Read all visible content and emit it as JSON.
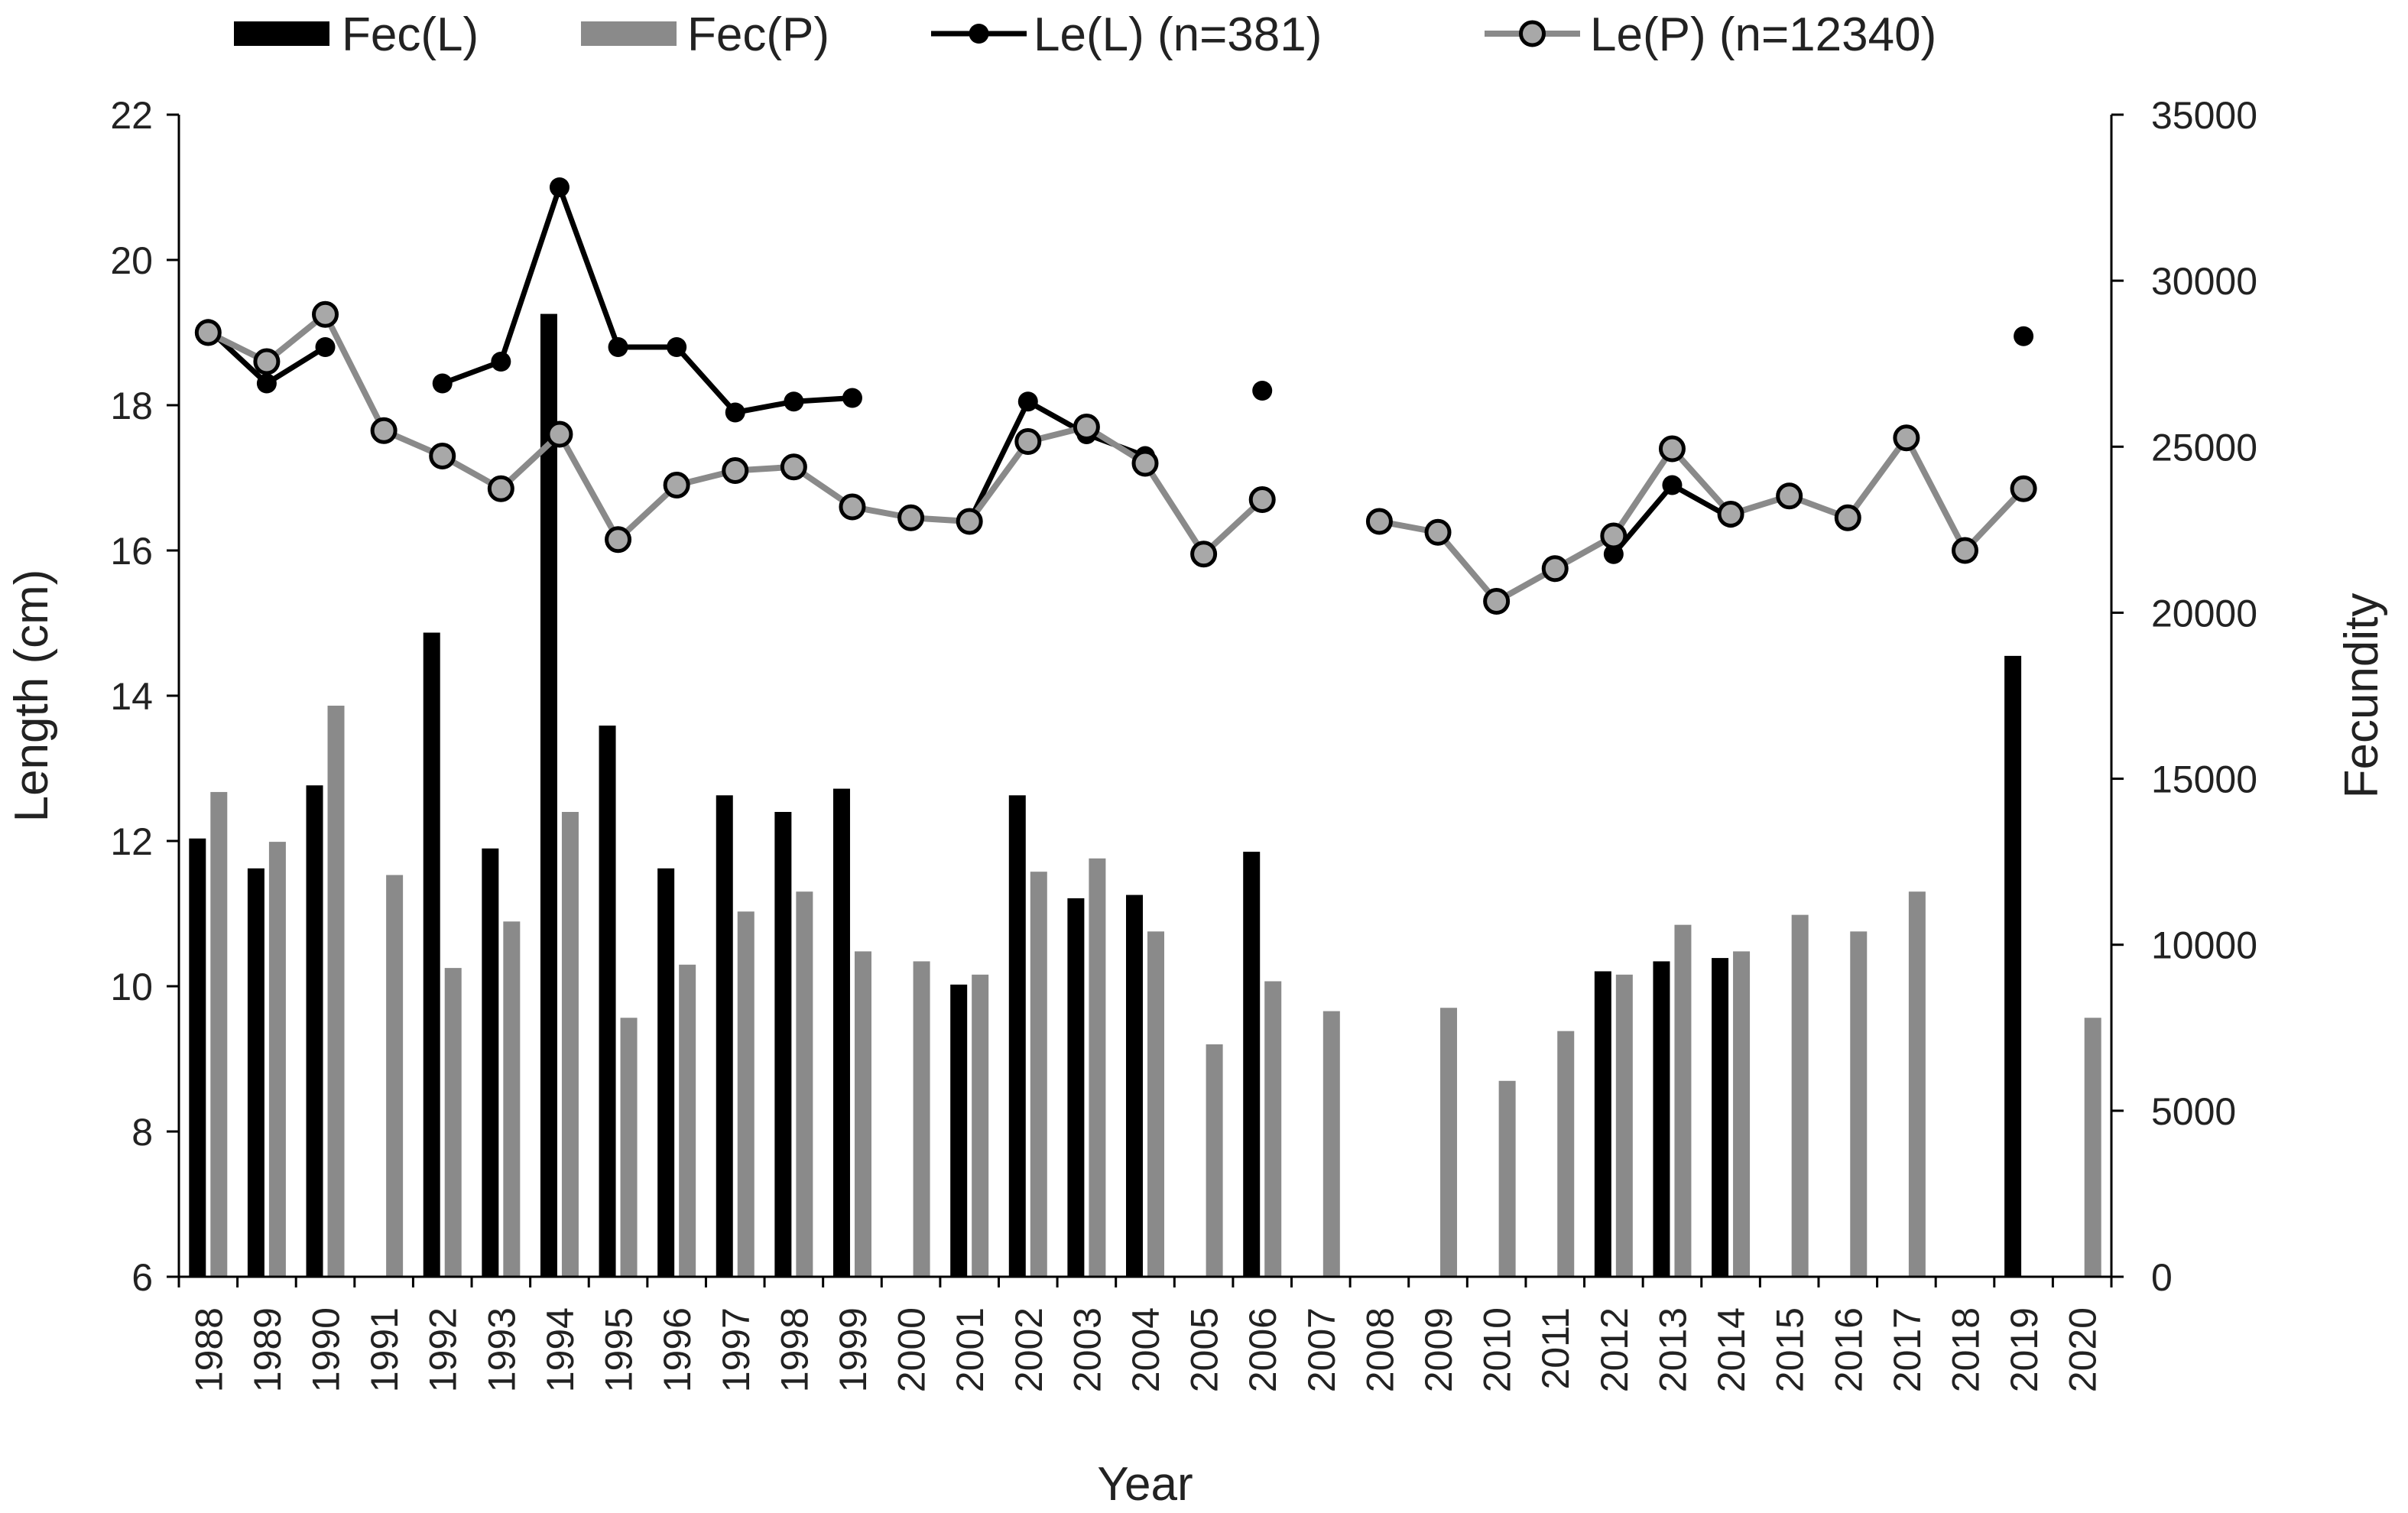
{
  "chart_data": {
    "type": "bar+line",
    "title": "",
    "xlabel": "Year",
    "ylabel_left": "Length (cm)",
    "ylabel_right": "Fecundity",
    "ylim_left": [
      6,
      22
    ],
    "ylim_right": [
      0,
      35000
    ],
    "yticks_left": [
      "6",
      "8",
      "10",
      "12",
      "14",
      "16",
      "18",
      "20",
      "22"
    ],
    "yticks_right": [
      "0",
      "5000",
      "10000",
      "15000",
      "20000",
      "25000",
      "30000",
      "35000"
    ],
    "legend_position": "top",
    "grid": false,
    "categories": [
      "1988",
      "1989",
      "1990",
      "1991",
      "1992",
      "1993",
      "1994",
      "1995",
      "1996",
      "1997",
      "1998",
      "1999",
      "2000",
      "2001",
      "2002",
      "2003",
      "2004",
      "2005",
      "2006",
      "2007",
      "2008",
      "2009",
      "2010",
      "2011",
      "2012",
      "2013",
      "2014",
      "2015",
      "2016",
      "2017",
      "2018",
      "2019",
      "2020"
    ],
    "series": [
      {
        "name": "Fec(L)",
        "kind": "bar",
        "axis": "right",
        "color": "#000000",
        "values": [
          13200,
          12300,
          14800,
          null,
          19400,
          12900,
          29000,
          16600,
          12300,
          14500,
          14000,
          14700,
          null,
          8800,
          14500,
          11400,
          11500,
          null,
          12800,
          null,
          null,
          null,
          null,
          null,
          9200,
          9500,
          9600,
          null,
          null,
          null,
          null,
          18700,
          null
        ]
      },
      {
        "name": "Fec(P)",
        "kind": "bar",
        "axis": "right",
        "color": "#8a8a8a",
        "values": [
          14600,
          13100,
          17200,
          12100,
          9300,
          10700,
          14000,
          7800,
          9400,
          11000,
          11600,
          9800,
          9500,
          9100,
          12200,
          12600,
          10400,
          7000,
          8900,
          8000,
          null,
          8100,
          5900,
          7400,
          9100,
          10600,
          9800,
          10900,
          10400,
          11600,
          null,
          null,
          7800
        ]
      },
      {
        "name": "Le(L) (n=381)",
        "kind": "line",
        "axis": "left",
        "color": "#000000",
        "values": [
          19.05,
          18.3,
          18.8,
          null,
          18.3,
          18.6,
          21.0,
          18.8,
          18.8,
          17.9,
          18.05,
          18.1,
          null,
          16.4,
          18.05,
          17.6,
          17.3,
          null,
          18.2,
          null,
          null,
          null,
          null,
          null,
          15.95,
          16.9,
          16.45,
          null,
          null,
          null,
          null,
          18.95,
          null
        ]
      },
      {
        "name": "Le(P) (n=12340)",
        "kind": "line",
        "axis": "left",
        "color": "#8a8a8a",
        "values": [
          19.0,
          18.6,
          19.25,
          17.65,
          17.3,
          16.85,
          17.6,
          16.15,
          16.9,
          17.1,
          17.15,
          16.6,
          16.45,
          16.4,
          17.5,
          17.7,
          17.2,
          15.95,
          16.7,
          null,
          16.4,
          16.25,
          15.3,
          15.75,
          16.2,
          17.4,
          16.5,
          16.75,
          16.45,
          17.55,
          16.0,
          16.85,
          null
        ]
      }
    ]
  }
}
